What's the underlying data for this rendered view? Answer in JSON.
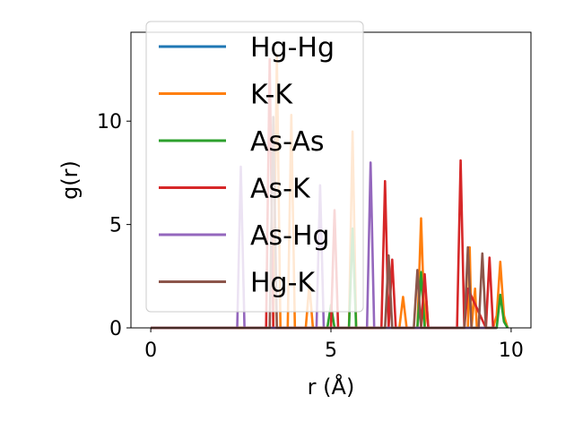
{
  "chart_data": {
    "type": "line",
    "title": "",
    "xlabel": "r (Å)",
    "ylabel": "g(r)",
    "xlim": [
      -0.55,
      10.55
    ],
    "ylim": [
      0,
      14.3
    ],
    "xticks": [
      0,
      5,
      10
    ],
    "yticks": [
      0,
      5,
      10
    ],
    "xtick_labels": [
      "0",
      "5",
      "10"
    ],
    "ytick_labels": [
      "0",
      "5",
      "10"
    ],
    "grid": false,
    "legend_position": "upper-left",
    "series": [
      {
        "name": "Hg-Hg",
        "color": "#1f77b4",
        "x": [
          0,
          3.3,
          3.4,
          3.5,
          3.6,
          9.6
        ],
        "y": [
          0,
          0,
          0,
          0,
          0,
          0
        ]
      },
      {
        "name": "K-K",
        "color": "#ff7f0e",
        "x": [
          0,
          3.4,
          3.5,
          3.6,
          3.7,
          3.8,
          3.9,
          4.0,
          4.3,
          4.4,
          4.5,
          5.5,
          5.6,
          5.7,
          6.9,
          7.0,
          7.1,
          7.4,
          7.5,
          7.6,
          7.65,
          7.7,
          7.8,
          8.8,
          8.85,
          8.9,
          9.0,
          9.05,
          9.1,
          9.5,
          9.6,
          9.7,
          9.8,
          9.9
        ],
        "y": [
          0,
          0,
          13.1,
          0,
          0,
          0,
          10.3,
          0,
          0,
          2.1,
          0,
          0,
          9.5,
          0,
          0,
          1.5,
          0,
          0,
          5.3,
          0,
          1.3,
          0,
          0,
          0,
          3.9,
          0,
          1.9,
          0,
          0,
          0,
          0.6,
          3.2,
          0.6,
          0
        ]
      },
      {
        "name": "As-As",
        "color": "#2ca02c",
        "x": [
          0,
          4.9,
          5.0,
          5.1,
          5.5,
          5.6,
          5.7,
          7.4,
          7.5,
          7.6,
          9.6,
          9.7,
          9.8,
          9.9
        ],
        "y": [
          0,
          0,
          1.1,
          0,
          0,
          4.8,
          0,
          0,
          2.7,
          0,
          0,
          1.6,
          0.3,
          0
        ]
      },
      {
        "name": "As-K",
        "color": "#d62728",
        "x": [
          0,
          3.2,
          3.3,
          3.4,
          3.5,
          5.0,
          5.1,
          5.2,
          6.4,
          6.5,
          6.6,
          6.7,
          6.8,
          7.5,
          7.6,
          7.7,
          8.5,
          8.6,
          8.7,
          8.8,
          9.3,
          9.4,
          9.5
        ],
        "y": [
          0,
          0,
          13.0,
          0,
          0,
          0,
          5.7,
          0,
          0,
          7.1,
          0,
          3.3,
          0,
          0,
          2.6,
          0,
          0,
          8.1,
          0,
          1.9,
          0,
          3.4,
          0
        ]
      },
      {
        "name": "As-Hg",
        "color": "#9467bd",
        "x": [
          0,
          2.4,
          2.5,
          2.6,
          4.6,
          4.7,
          4.8,
          6.0,
          6.1,
          6.2,
          9.6
        ],
        "y": [
          0,
          0,
          7.8,
          0,
          0,
          6.9,
          0,
          0,
          8.0,
          0,
          0
        ]
      },
      {
        "name": "Hg-K",
        "color": "#8c564b",
        "x": [
          0,
          3.3,
          3.4,
          3.5,
          6.5,
          6.6,
          6.7,
          7.3,
          7.4,
          7.5,
          8.7,
          8.8,
          8.9,
          9.1,
          9.2,
          9.3,
          9.6
        ],
        "y": [
          0,
          0,
          10.2,
          0,
          0,
          3.5,
          0,
          0,
          2.8,
          0,
          0,
          3.9,
          0,
          0,
          3.6,
          0,
          0
        ]
      }
    ]
  }
}
